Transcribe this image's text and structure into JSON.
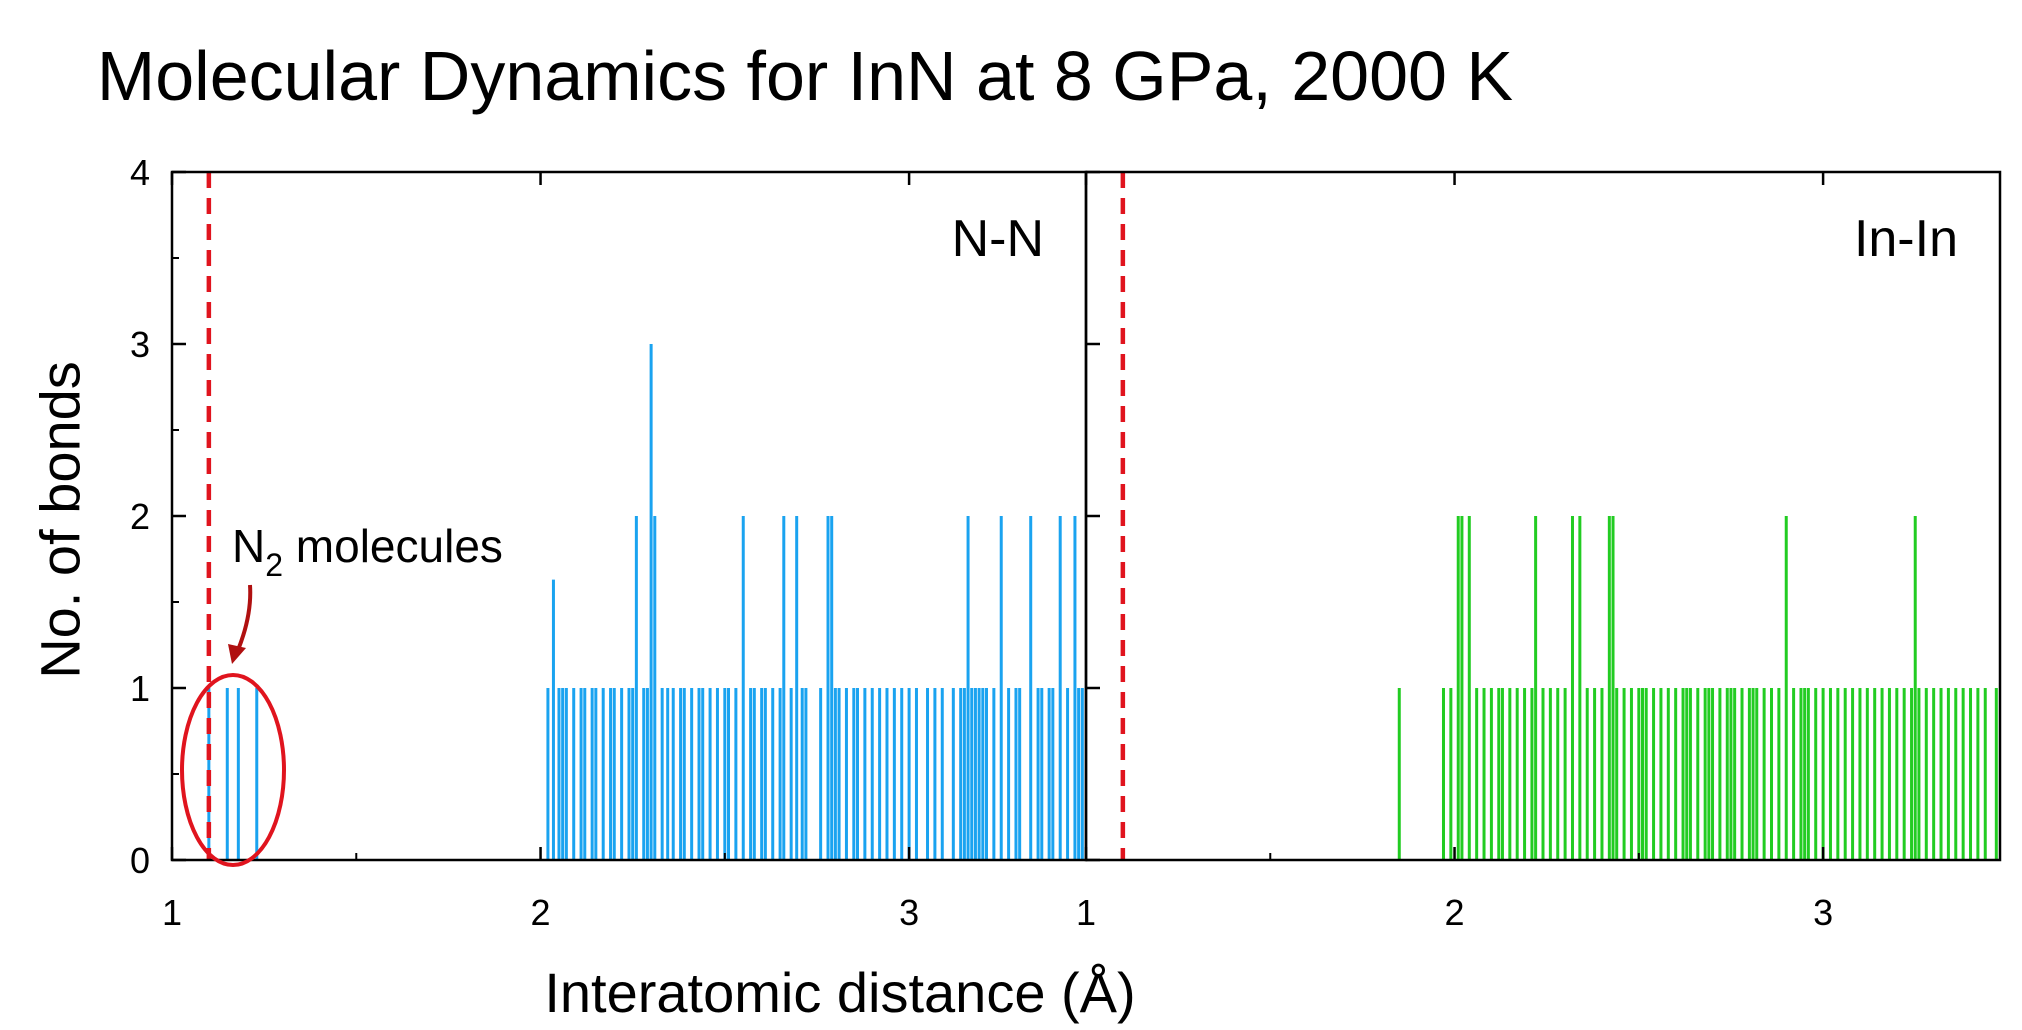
{
  "chart_data": {
    "type": "bar",
    "title": "Molecular Dynamics for InN at 8 GPa, 2000 K",
    "xlabel": "Interatomic distance (Å)",
    "ylabel": "No. of bonds",
    "ylim": [
      0,
      4
    ],
    "yticks": [
      "0",
      "1",
      "2",
      "3",
      "4"
    ],
    "colors": {
      "nn": "#1aa3f0",
      "inin": "#22cc22",
      "marker": "#e0141e",
      "axis": "#000000"
    },
    "annotation": {
      "text": "N",
      "sub": "2",
      "tail": " molecules"
    },
    "panels": [
      {
        "label": "N-N",
        "xlim": [
          1,
          3.48
        ],
        "xticks": [
          "1",
          "2",
          "3"
        ],
        "vline": 1.1,
        "series": [
          {
            "x": [
              1.1,
              1.15,
              1.18,
              1.23,
              2.02,
              2.035,
              2.05,
              2.06,
              2.07,
              2.09,
              2.11,
              2.12,
              2.14,
              2.15,
              2.17,
              2.19,
              2.2,
              2.22,
              2.24,
              2.25,
              2.26,
              2.28,
              2.29,
              2.3,
              2.31,
              2.33,
              2.345,
              2.36,
              2.38,
              2.39,
              2.41,
              2.43,
              2.44,
              2.46,
              2.48,
              2.5,
              2.51,
              2.53,
              2.55,
              2.57,
              2.58,
              2.6,
              2.61,
              2.63,
              2.65,
              2.66,
              2.68,
              2.695,
              2.71,
              2.72,
              2.76,
              2.78,
              2.79,
              2.8,
              2.81,
              2.83,
              2.85,
              2.86,
              2.88,
              2.9,
              2.92,
              2.94,
              2.96,
              2.98,
              3.0,
              3.02,
              3.05,
              3.07,
              3.09,
              3.12,
              3.14,
              3.15,
              3.16,
              3.17,
              3.18,
              3.19,
              3.2,
              3.21,
              3.23,
              3.25,
              3.27,
              3.29,
              3.3,
              3.33,
              3.35,
              3.36,
              3.38,
              3.39,
              3.41,
              3.43,
              3.45,
              3.46,
              3.47
            ],
            "values": [
              1,
              1,
              1,
              1,
              1,
              1.63,
              1,
              1,
              1,
              1,
              1,
              1,
              1,
              1,
              1,
              1,
              1,
              1,
              1,
              1,
              2,
              1,
              1,
              3,
              2,
              1,
              1,
              1,
              1,
              1,
              1,
              1,
              1,
              1,
              1,
              1,
              1,
              1,
              2,
              1,
              1,
              1,
              1,
              1,
              1,
              2,
              1,
              2,
              1,
              1,
              1,
              2,
              2,
              1,
              1,
              1,
              1,
              1,
              1,
              1,
              1,
              1,
              1,
              1,
              1,
              1,
              1,
              1,
              1,
              1,
              1,
              1,
              2,
              1,
              1,
              1,
              1,
              1,
              1,
              2,
              1,
              1,
              1,
              2,
              1,
              1,
              1,
              1,
              2,
              1,
              2,
              1,
              1
            ]
          }
        ]
      },
      {
        "label": "In-In",
        "xlim": [
          1,
          3.48
        ],
        "xticks": [
          "1",
          "2",
          "3"
        ],
        "vline": 1.1,
        "series": [
          {
            "x": [
              1.85,
              1.97,
              1.99,
              2.01,
              2.02,
              2.04,
              2.06,
              2.08,
              2.1,
              2.12,
              2.13,
              2.15,
              2.17,
              2.19,
              2.21,
              2.22,
              2.24,
              2.26,
              2.28,
              2.3,
              2.32,
              2.34,
              2.36,
              2.38,
              2.4,
              2.42,
              2.43,
              2.44,
              2.46,
              2.48,
              2.5,
              2.51,
              2.52,
              2.54,
              2.56,
              2.58,
              2.6,
              2.62,
              2.63,
              2.64,
              2.66,
              2.68,
              2.69,
              2.7,
              2.72,
              2.74,
              2.75,
              2.76,
              2.78,
              2.8,
              2.81,
              2.82,
              2.84,
              2.86,
              2.88,
              2.9,
              2.92,
              2.94,
              2.95,
              2.96,
              2.98,
              3.0,
              3.02,
              3.04,
              3.06,
              3.08,
              3.1,
              3.12,
              3.14,
              3.16,
              3.18,
              3.2,
              3.22,
              3.24,
              3.25,
              3.26,
              3.28,
              3.3,
              3.32,
              3.34,
              3.36,
              3.38,
              3.4,
              3.42,
              3.44,
              3.47
            ],
            "values": [
              1,
              1,
              1,
              2,
              2,
              2,
              1,
              1,
              1,
              1,
              1,
              1,
              1,
              1,
              1,
              2,
              1,
              1,
              1,
              1,
              2,
              2,
              1,
              1,
              1,
              2,
              2,
              1,
              1,
              1,
              1,
              1,
              1,
              1,
              1,
              1,
              1,
              1,
              1,
              1,
              1,
              1,
              1,
              1,
              1,
              1,
              1,
              1,
              1,
              1,
              1,
              1,
              1,
              1,
              1,
              2,
              1,
              1,
              1,
              1,
              1,
              1,
              1,
              1,
              1,
              1,
              1,
              1,
              1,
              1,
              1,
              1,
              1,
              1,
              2,
              1,
              1,
              1,
              1,
              1,
              1,
              1,
              1,
              1,
              1,
              1
            ]
          }
        ]
      }
    ]
  }
}
